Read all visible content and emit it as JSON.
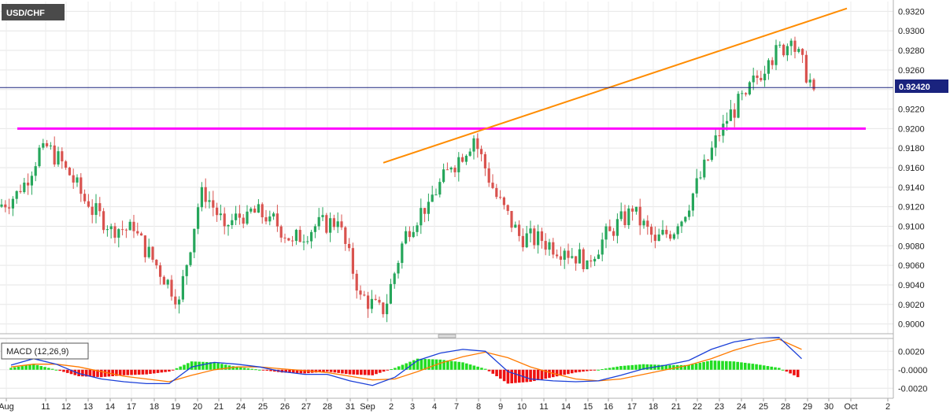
{
  "chart_data": [
    {
      "type": "candlestick",
      "title": "USD/CHF",
      "last_price": "0.92420",
      "ylim": [
        0.899,
        0.933
      ],
      "y_ticks": [
        "0.9320",
        "0.9300",
        "0.9280",
        "0.9260",
        "0.9240",
        "0.9220",
        "0.9200",
        "0.9180",
        "0.9160",
        "0.9140",
        "0.9120",
        "0.9100",
        "0.9080",
        "0.9060",
        "0.9040",
        "0.9020",
        "0.9000"
      ],
      "x_ticks": [
        "Aug",
        "11",
        "12",
        "13",
        "14",
        "17",
        "18",
        "19",
        "20",
        "21",
        "24",
        "25",
        "26",
        "27",
        "28",
        "31",
        "Sep",
        "2",
        "3",
        "4",
        "7",
        "8",
        "9",
        "10",
        "11",
        "14",
        "15",
        "16",
        "17",
        "18",
        "21",
        "22",
        "23",
        "24",
        "25",
        "28",
        "29",
        "30",
        "Oct",
        "2"
      ],
      "candles_per_day": 6,
      "day_closes": [
        0.9135,
        0.9185,
        0.916,
        0.912,
        0.91,
        0.9095,
        0.906,
        0.9025,
        0.914,
        0.91,
        0.9115,
        0.911,
        0.9085,
        0.91,
        0.9105,
        0.903,
        0.901,
        0.9095,
        0.9125,
        0.916,
        0.919,
        0.913,
        0.909,
        0.9085,
        0.9075,
        0.9065,
        0.9095,
        0.9115,
        0.9085,
        0.91,
        0.915,
        0.9205,
        0.9235,
        0.927,
        0.929,
        0.924
      ],
      "lines": [
        {
          "name": "support",
          "color": "#ff00ff",
          "y": 0.92
        },
        {
          "name": "trendline",
          "color": "#ff8c00",
          "from": [
            "2",
            0.9165
          ],
          "to": [
            "30",
            0.9323
          ]
        },
        {
          "name": "last-price",
          "color": "#1a237e",
          "y": 0.9242
        }
      ]
    },
    {
      "type": "macd",
      "title": "MACD (12,26,9)",
      "ylim": [
        -0.003,
        0.0033
      ],
      "y_ticks": [
        "0.0020",
        "-0.0000",
        "-0.0020"
      ],
      "macd": [
        0.0005,
        0.0012,
        0.0006,
        -0.0004,
        -0.001,
        -0.0013,
        -0.0015,
        -0.0015,
        0.0003,
        0.0008,
        0.0006,
        0.0003,
        -0.0002,
        -0.0005,
        -0.0005,
        -0.0012,
        -0.0017,
        -0.0008,
        0.001,
        0.0018,
        0.0022,
        0.002,
        -0.0002,
        -0.001,
        -0.0012,
        -0.0013,
        -0.0012,
        -0.0006,
        0.0001,
        0.0005,
        0.001,
        0.0022,
        0.003,
        0.0034,
        0.0035,
        0.0012
      ],
      "signal": [
        0.0003,
        0.0006,
        0.0006,
        0.0003,
        -0.0002,
        -0.0007,
        -0.001,
        -0.0013,
        -0.0006,
        0.0,
        0.0003,
        0.0003,
        0.0001,
        -0.0001,
        -0.0003,
        -0.0007,
        -0.0011,
        -0.001,
        -0.0002,
        0.0007,
        0.0014,
        0.0019,
        0.0013,
        0.0003,
        -0.0004,
        -0.001,
        -0.0012,
        -0.001,
        -0.0005,
        0.0,
        0.0005,
        0.0012,
        0.0021,
        0.0028,
        0.0033,
        0.0022
      ],
      "macd_color": "#1a3fd8",
      "signal_color": "#ff7a00",
      "hist_pos_color": "#22dd22",
      "hist_neg_color": "#ee1111"
    }
  ]
}
